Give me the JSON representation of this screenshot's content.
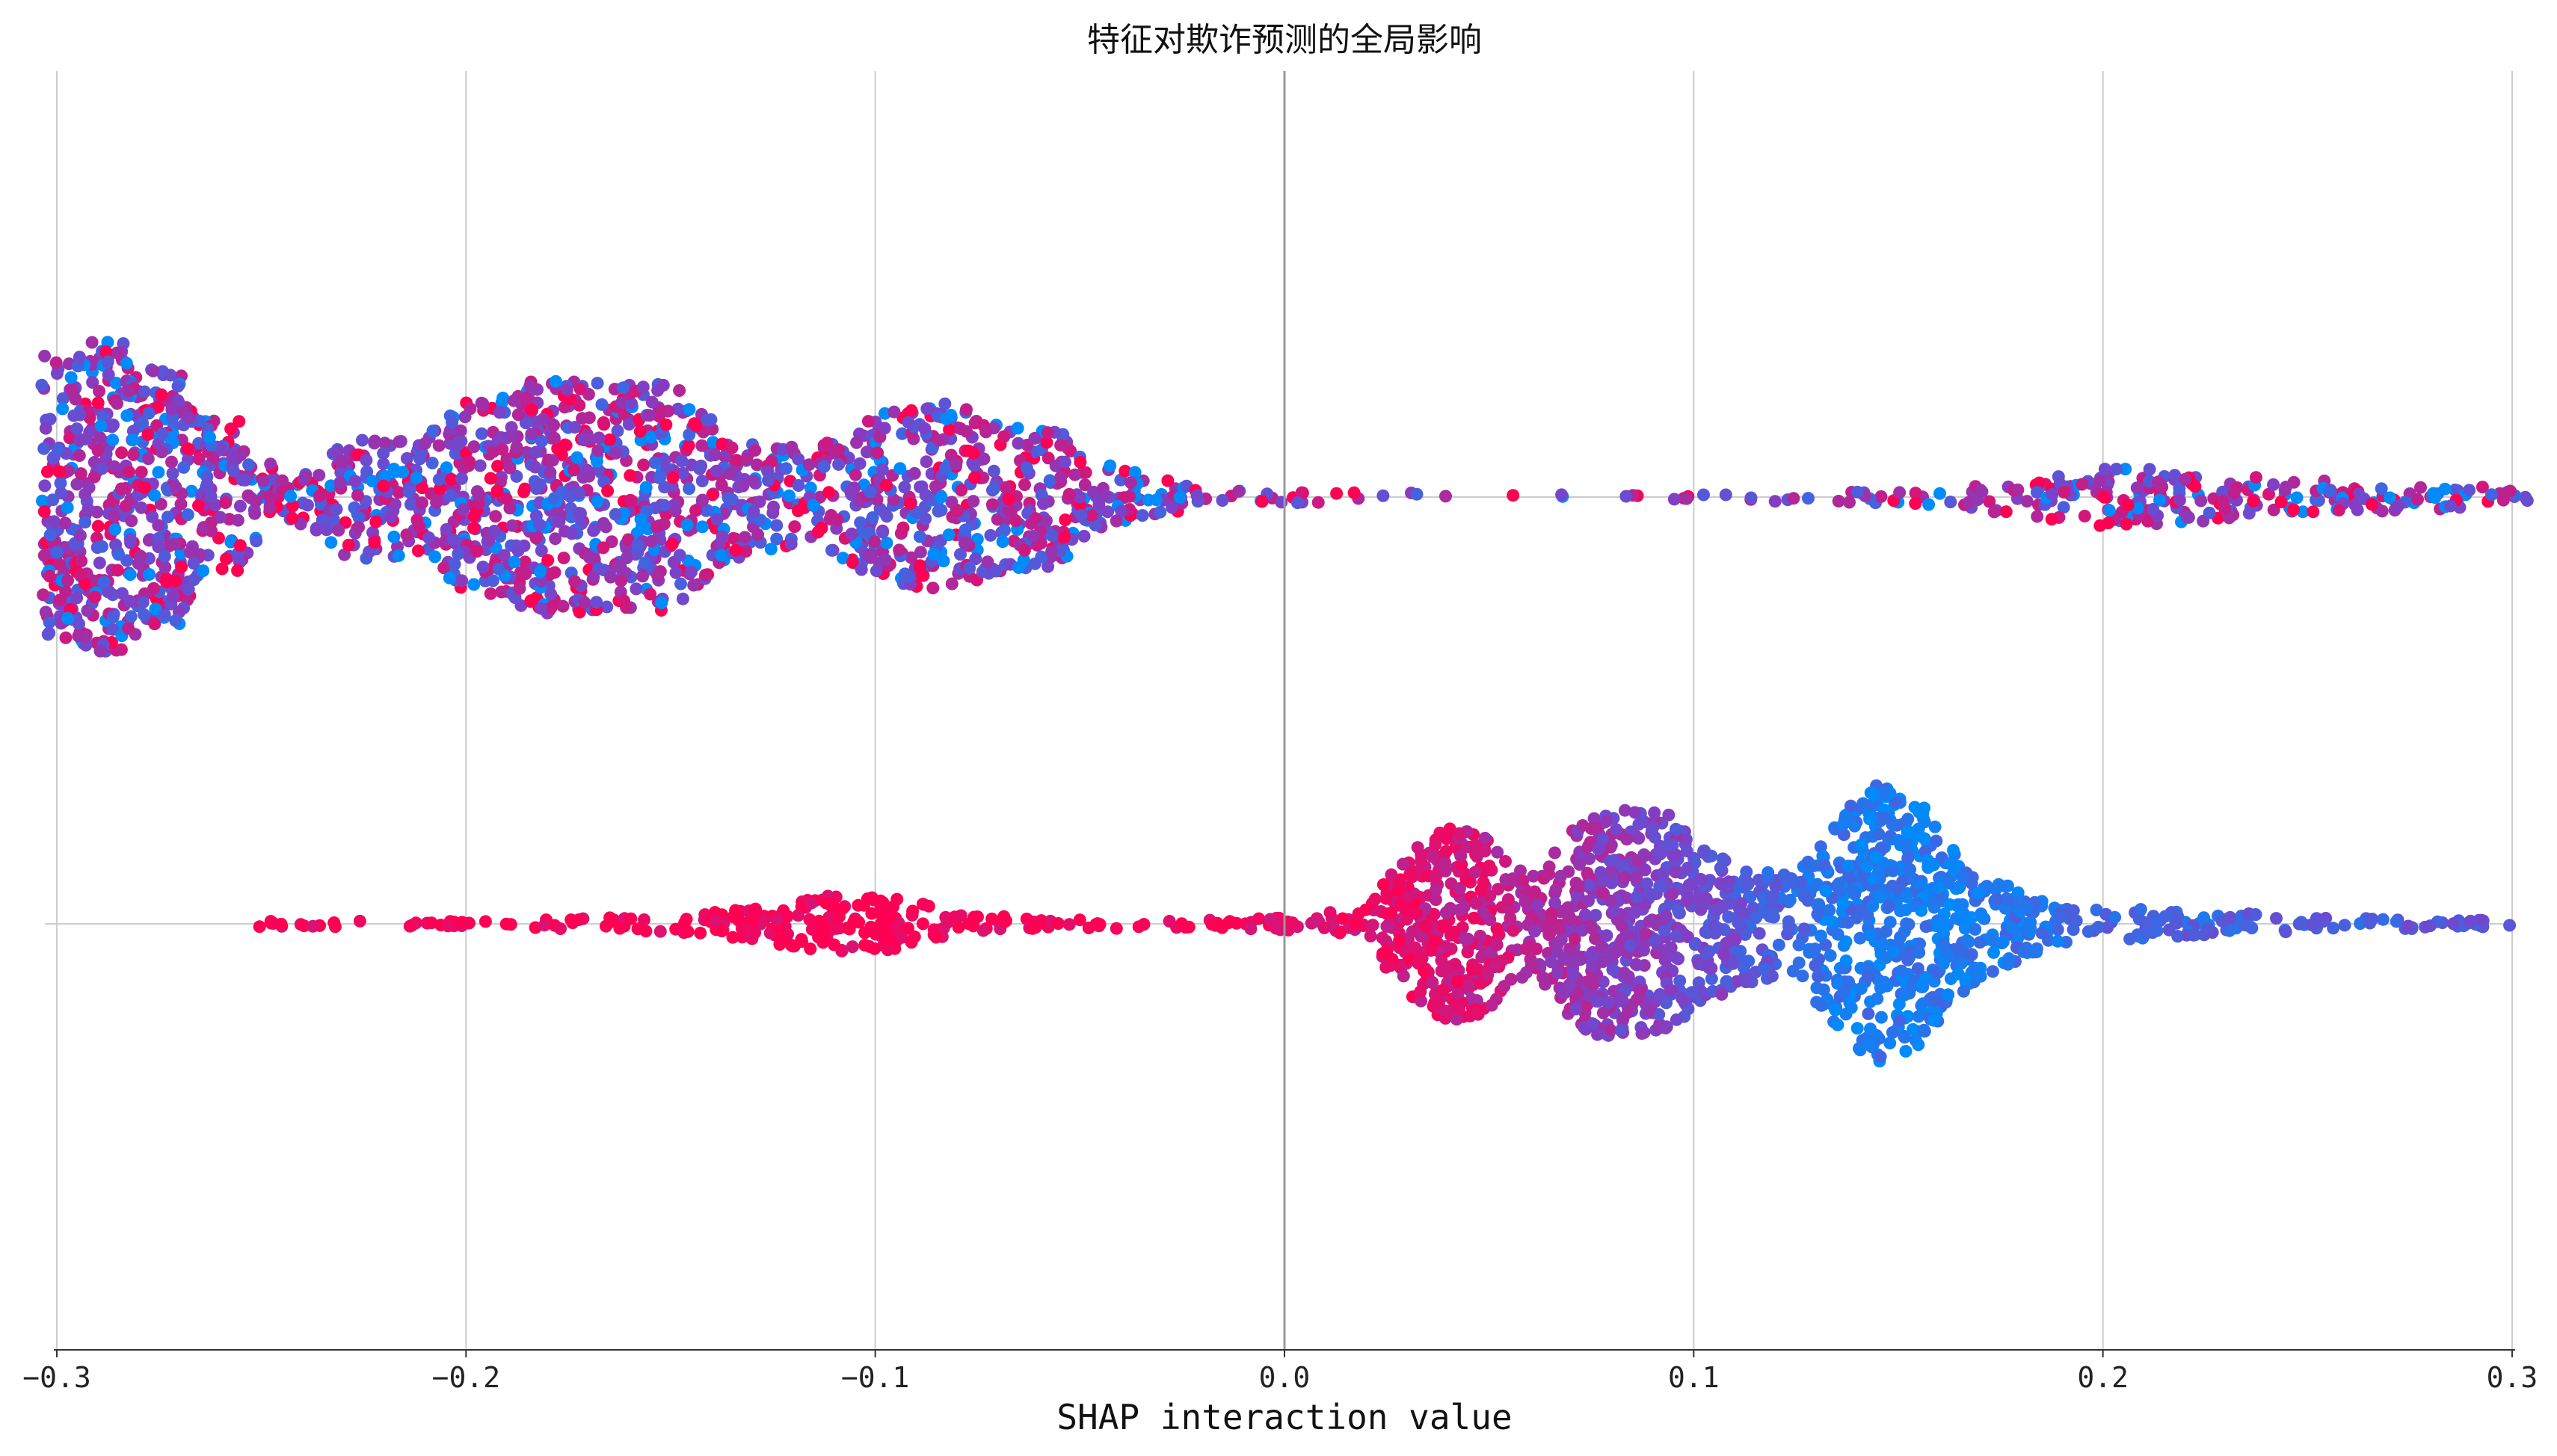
{
  "chart_data": {
    "type": "scatter",
    "subtype": "shap-beeswarm",
    "title": "特征对欺诈预测的全局影响",
    "xlabel": "SHAP interaction value",
    "ylabel": "",
    "xlim": [
      -0.3,
      0.3
    ],
    "x_ticks": [
      -0.3,
      -0.2,
      -0.1,
      0.0,
      0.1,
      0.2,
      0.3
    ],
    "x_tick_labels": [
      "−0.3",
      "−0.2",
      "−0.1",
      "0.0",
      "0.1",
      "0.2",
      "0.3"
    ],
    "grid": "vertical",
    "colormap": {
      "low": "#008bfb",
      "high": "#ff0052"
    },
    "series": [
      {
        "row": 0,
        "points": 7000,
        "x_range": [
          -0.303,
          0.303
        ],
        "density_profile": [
          [
            -0.303,
            0.92
          ],
          [
            -0.297,
            1.0
          ],
          [
            -0.283,
            1.0
          ],
          [
            -0.279,
            0.82
          ],
          [
            -0.27,
            0.82
          ],
          [
            -0.265,
            0.5
          ],
          [
            -0.255,
            0.5
          ],
          [
            -0.25,
            0.22
          ],
          [
            -0.235,
            0.22
          ],
          [
            -0.23,
            0.4
          ],
          [
            -0.21,
            0.42
          ],
          [
            -0.2,
            0.62
          ],
          [
            -0.19,
            0.66
          ],
          [
            -0.185,
            0.75
          ],
          [
            -0.17,
            0.74
          ],
          [
            -0.155,
            0.72
          ],
          [
            -0.15,
            0.74
          ],
          [
            -0.14,
            0.5
          ],
          [
            -0.13,
            0.34
          ],
          [
            -0.12,
            0.34
          ],
          [
            -0.11,
            0.36
          ],
          [
            -0.1,
            0.53
          ],
          [
            -0.08,
            0.62
          ],
          [
            -0.07,
            0.48
          ],
          [
            -0.055,
            0.45
          ],
          [
            -0.05,
            0.28
          ],
          [
            -0.04,
            0.18
          ],
          [
            -0.03,
            0.12
          ],
          [
            -0.02,
            0.06
          ],
          [
            0.0,
            0.04
          ],
          [
            0.06,
            0.015
          ],
          [
            0.1,
            0.02
          ],
          [
            0.14,
            0.04
          ],
          [
            0.16,
            0.06
          ],
          [
            0.18,
            0.12
          ],
          [
            0.2,
            0.19
          ],
          [
            0.22,
            0.17
          ],
          [
            0.26,
            0.1
          ],
          [
            0.3,
            0.06
          ],
          [
            0.303,
            0.05
          ]
        ],
        "color_mix": {
          "range_low": 0.25,
          "range_high": 0.85
        }
      },
      {
        "row": 1,
        "points": 6000,
        "x_range": [
          -0.262,
          0.303
        ],
        "density_profile": [
          [
            -0.262,
            0.02
          ],
          [
            -0.2,
            0.02
          ],
          [
            -0.15,
            0.05
          ],
          [
            -0.125,
            0.12
          ],
          [
            -0.115,
            0.18
          ],
          [
            -0.105,
            0.2
          ],
          [
            -0.09,
            0.14
          ],
          [
            -0.08,
            0.06
          ],
          [
            -0.05,
            0.03
          ],
          [
            -0.02,
            0.03
          ],
          [
            0.0,
            0.04
          ],
          [
            0.01,
            0.08
          ],
          [
            0.02,
            0.14
          ],
          [
            0.025,
            0.28
          ],
          [
            0.03,
            0.45
          ],
          [
            0.035,
            0.55
          ],
          [
            0.04,
            0.62
          ],
          [
            0.045,
            0.6
          ],
          [
            0.05,
            0.55
          ],
          [
            0.055,
            0.4
          ],
          [
            0.06,
            0.3
          ],
          [
            0.065,
            0.42
          ],
          [
            0.07,
            0.6
          ],
          [
            0.075,
            0.7
          ],
          [
            0.085,
            0.72
          ],
          [
            0.095,
            0.7
          ],
          [
            0.1,
            0.55
          ],
          [
            0.11,
            0.4
          ],
          [
            0.125,
            0.3
          ],
          [
            0.13,
            0.5
          ],
          [
            0.14,
            0.8
          ],
          [
            0.145,
            0.92
          ],
          [
            0.155,
            0.78
          ],
          [
            0.165,
            0.5
          ],
          [
            0.175,
            0.28
          ],
          [
            0.19,
            0.12
          ],
          [
            0.22,
            0.08
          ],
          [
            0.26,
            0.04
          ],
          [
            0.3,
            0.02
          ],
          [
            0.303,
            0.02
          ]
        ],
        "color_by_x": [
          [
            -0.262,
            1.0
          ],
          [
            -0.02,
            1.0
          ],
          [
            0.02,
            0.9
          ],
          [
            0.05,
            0.8
          ],
          [
            0.08,
            0.55
          ],
          [
            0.11,
            0.4
          ],
          [
            0.13,
            0.15
          ],
          [
            0.16,
            0.1
          ],
          [
            0.2,
            0.25
          ],
          [
            0.303,
            0.35
          ]
        ]
      }
    ]
  }
}
